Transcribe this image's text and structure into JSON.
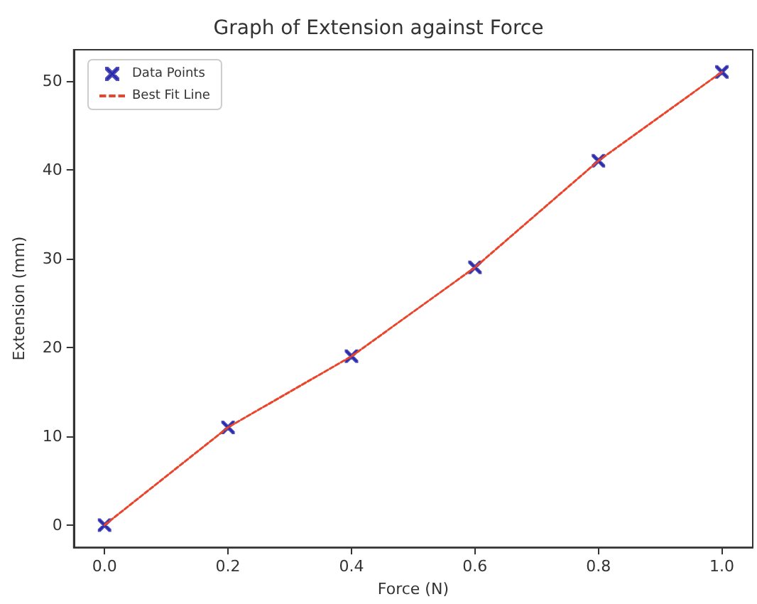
{
  "chart_data": {
    "type": "scatter",
    "title": "Graph of Extension against Force",
    "xlabel": "Force (N)",
    "ylabel": "Extension (mm)",
    "x": [
      0,
      0.2,
      0.4,
      0.6,
      0.8,
      1.0
    ],
    "series": [
      {
        "name": "Data Points",
        "color": "#1f1fa8",
        "marker": "cross",
        "values": [
          0,
          11,
          19,
          29,
          41,
          51
        ]
      },
      {
        "name": "Best Fit Line",
        "type": "line",
        "color": "#e8452c",
        "marker": "none",
        "line_style": "dashed",
        "values": [
          0,
          11,
          19,
          29,
          41,
          51
        ]
      }
    ],
    "xlim": [
      -0.05,
      1.05
    ],
    "ylim": [
      -2.5,
      53.5
    ],
    "xticks": [
      {
        "value": 0,
        "label": "0.0"
      },
      {
        "value": 0.2,
        "label": "0.2"
      },
      {
        "value": 0.4,
        "label": "0.4"
      },
      {
        "value": 0.6,
        "label": "0.6"
      },
      {
        "value": 0.8,
        "label": "0.8"
      },
      {
        "value": 1.0,
        "label": "1.0"
      }
    ],
    "yticks": [
      0,
      10,
      20,
      30,
      40,
      50
    ],
    "grid": false,
    "legend": "top left"
  }
}
